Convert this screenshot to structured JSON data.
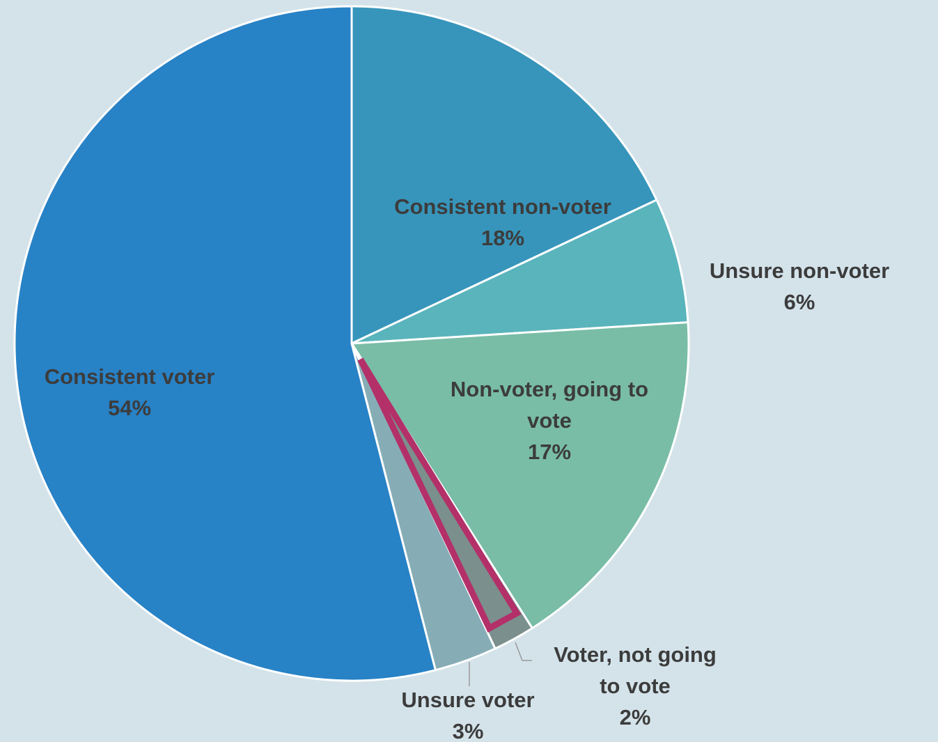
{
  "chart_data": {
    "type": "pie",
    "title": "",
    "start_angle_deg": 0,
    "direction": "clockwise",
    "slices": [
      {
        "name": "Consistent non-voter",
        "value": 18,
        "value_label": "18%",
        "color": "#3795bb",
        "label_lines": [
          "Consistent non-voter"
        ]
      },
      {
        "name": "Unsure non-voter",
        "value": 6,
        "value_label": "6%",
        "color": "#5ab4bc",
        "label_lines": [
          "Unsure non-voter"
        ]
      },
      {
        "name": "Non-voter, going to vote",
        "value": 17,
        "value_label": "17%",
        "color": "#79bda7",
        "label_lines": [
          "Non-voter, going to",
          "vote"
        ]
      },
      {
        "name": "Voter, not going to vote",
        "value": 2,
        "value_label": "2%",
        "color": "#7b8f8d",
        "label_lines": [
          "Voter, not going",
          "to vote"
        ],
        "highlighted": true,
        "highlight_color": "#b33069"
      },
      {
        "name": "Unsure voter",
        "value": 3,
        "value_label": "3%",
        "color": "#86adb6",
        "label_lines": [
          "Unsure voter"
        ]
      },
      {
        "name": "Consistent voter",
        "value": 54,
        "value_label": "54%",
        "color": "#2882c6",
        "label_lines": [
          "Consistent voter"
        ]
      }
    ],
    "colors": {
      "background": "#d4e3ea",
      "label_text": "#3c3c3c",
      "slice_border": "#ffffff",
      "leader_line": "#9a9a9a"
    }
  }
}
